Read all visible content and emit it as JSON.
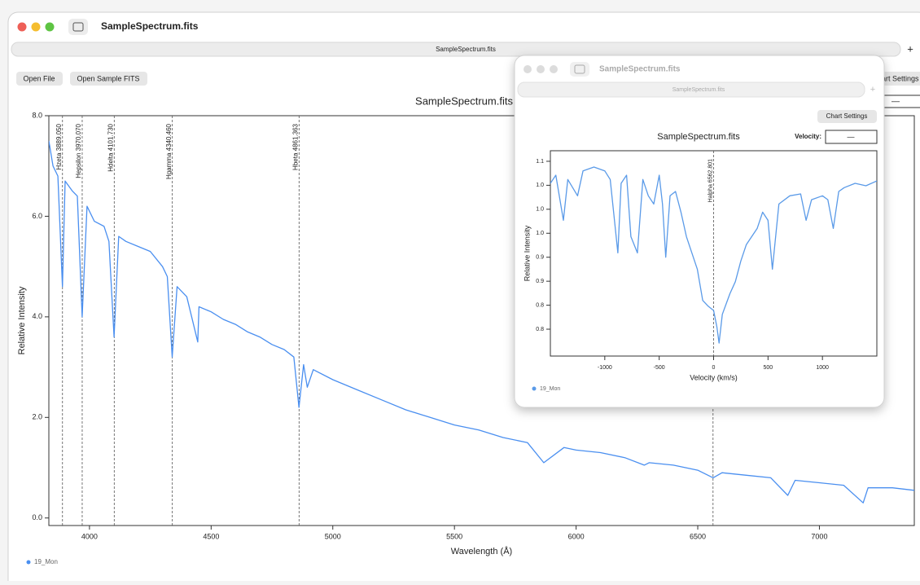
{
  "window": {
    "title": "SampleSpectrum.fits",
    "tab": "SampleSpectrum.fits",
    "new_tab": "+",
    "buttons": [
      "Open File",
      "Open Sample FITS",
      "Chart Settings"
    ],
    "velocity_input": "—"
  },
  "inset_window": {
    "title": "SampleSpectrum.fits",
    "tab": "SampleSpectrum.fits",
    "new_tab": "+",
    "button": "Chart Settings",
    "velocity_label": "Velocity:",
    "velocity_input": "—"
  },
  "chart_data": [
    {
      "type": "line",
      "title": "SampleSpectrum.fits",
      "x_label": "Wavelength (Å)",
      "y_label": "Relative Intensity",
      "xlim": [
        3833,
        7390
      ],
      "ylim": [
        -0.15,
        8.0
      ],
      "xticks": [
        4000,
        4500,
        5000,
        5500,
        6000,
        6500,
        7000
      ],
      "yticks": [
        {
          "value": 0,
          "label": "0.0"
        },
        {
          "value": 2,
          "label": "2.0"
        },
        {
          "value": 4,
          "label": "4.0"
        },
        {
          "value": 6,
          "label": "6.0"
        },
        {
          "value": 8,
          "label": "8.0"
        }
      ],
      "annotations": [
        {
          "value": 3889.05,
          "label": "Hzeta 3889.050"
        },
        {
          "value": 3970.07,
          "label": "Hepsilon 3970.070"
        },
        {
          "value": 4101.73,
          "label": "Hdelta 4101.730"
        },
        {
          "value": 4340.46,
          "label": "Hgamma 4340.460"
        },
        {
          "value": 4861.363,
          "label": "Hbeta 4861.363"
        },
        {
          "value": 6562.801
        }
      ],
      "legend": "bottom-left",
      "series": [
        {
          "name": "19_Mon",
          "color": "#4a8ff0",
          "x": [
            3833,
            3850,
            3870,
            3889,
            3900,
            3930,
            3950,
            3970,
            3990,
            4020,
            4060,
            4080,
            4101,
            4120,
            4150,
            4200,
            4250,
            4300,
            4320,
            4340,
            4360,
            4400,
            4445,
            4450,
            4500,
            4550,
            4600,
            4650,
            4700,
            4750,
            4800,
            4840,
            4861,
            4880,
            4895,
            4920,
            5000,
            5100,
            5200,
            5300,
            5400,
            5500,
            5600,
            5700,
            5800,
            5867,
            5950,
            6000,
            6100,
            6200,
            6280,
            6300,
            6400,
            6500,
            6563,
            6600,
            6700,
            6800,
            6870,
            6900,
            7000,
            7100,
            7180,
            7200,
            7300,
            7390
          ],
          "values": [
            7.5,
            7.0,
            6.8,
            4.6,
            6.7,
            6.5,
            6.4,
            4.0,
            6.2,
            5.9,
            5.8,
            5.5,
            3.6,
            5.6,
            5.5,
            5.4,
            5.3,
            5.0,
            4.8,
            3.2,
            4.6,
            4.4,
            3.5,
            4.2,
            4.1,
            3.95,
            3.85,
            3.7,
            3.6,
            3.45,
            3.35,
            3.2,
            2.2,
            3.05,
            2.6,
            2.95,
            2.75,
            2.55,
            2.35,
            2.15,
            2.0,
            1.85,
            1.75,
            1.6,
            1.5,
            1.1,
            1.4,
            1.35,
            1.3,
            1.2,
            1.05,
            1.1,
            1.05,
            0.95,
            0.8,
            0.9,
            0.85,
            0.8,
            0.45,
            0.75,
            0.7,
            0.65,
            0.3,
            0.6,
            0.6,
            0.55
          ]
        }
      ]
    },
    {
      "type": "line",
      "title": "SampleSpectrum.fits",
      "x_label": "Velocity (km/s)",
      "y_label": "Relative Intensity",
      "xlim": [
        -1500,
        1500
      ],
      "ylim": [
        0.694,
        1.122
      ],
      "xticks": [
        -1000,
        -500,
        0,
        500,
        1000
      ],
      "yticks": [
        {
          "value": 1.1,
          "label": "1.1"
        },
        {
          "value": 1.05,
          "label": "1.0"
        },
        {
          "value": 1.0,
          "label": "1.0"
        },
        {
          "value": 0.95,
          "label": "1.0"
        },
        {
          "value": 0.9,
          "label": "0.9"
        },
        {
          "value": 0.85,
          "label": "0.9"
        },
        {
          "value": 0.8,
          "label": "0.8"
        },
        {
          "value": 0.75,
          "label": "0.8"
        }
      ],
      "annotations": [
        {
          "value": 0,
          "label": "Halpha 6562.801"
        }
      ],
      "legend": "bottom-left",
      "series": [
        {
          "name": "19_Mon",
          "color": "#5a9ae8",
          "x": [
            -1500,
            -1450,
            -1380,
            -1340,
            -1250,
            -1200,
            -1100,
            -1000,
            -950,
            -880,
            -850,
            -800,
            -760,
            -700,
            -650,
            -600,
            -550,
            -500,
            -470,
            -440,
            -400,
            -350,
            -300,
            -250,
            -200,
            -150,
            -100,
            -50,
            0,
            30,
            50,
            80,
            150,
            200,
            250,
            300,
            400,
            450,
            500,
            540,
            600,
            700,
            800,
            850,
            900,
            1000,
            1050,
            1100,
            1150,
            1200,
            1300,
            1400,
            1500
          ],
          "values": [
            1.054,
            1.071,
            0.977,
            1.062,
            1.028,
            1.08,
            1.088,
            1.08,
            1.062,
            0.909,
            1.054,
            1.071,
            0.943,
            0.909,
            1.062,
            1.028,
            1.011,
            1.071,
            1.011,
            0.9,
            1.028,
            1.037,
            0.994,
            0.943,
            0.909,
            0.875,
            0.81,
            0.798,
            0.789,
            0.755,
            0.721,
            0.781,
            0.824,
            0.849,
            0.892,
            0.926,
            0.96,
            0.994,
            0.977,
            0.875,
            1.011,
            1.028,
            1.032,
            0.977,
            1.02,
            1.028,
            1.02,
            0.96,
            1.037,
            1.045,
            1.054,
            1.049,
            1.059
          ]
        }
      ]
    }
  ]
}
